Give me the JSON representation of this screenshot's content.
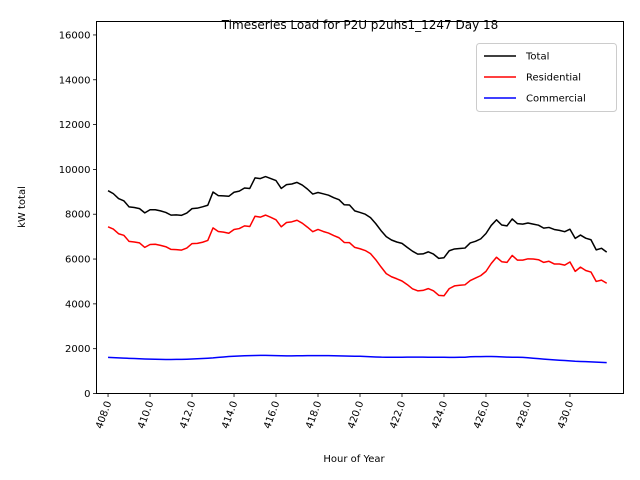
{
  "chart_data": {
    "type": "line",
    "title": "Timeseries Load for P2U p2uhs1_1247  Day 18",
    "xlabel": "Hour of Year",
    "ylabel": "kW total",
    "xlim": [
      407.45,
      432.55
    ],
    "ylim": [
      0,
      16600
    ],
    "grid": false,
    "legend_position": "top-right",
    "xticks": [
      408,
      410,
      412,
      414,
      416,
      418,
      420,
      422,
      424,
      426,
      428,
      430
    ],
    "xtick_labels": [
      "408.0",
      "410.0",
      "412.0",
      "414.0",
      "416.0",
      "418.0",
      "420.0",
      "422.0",
      "424.0",
      "426.0",
      "428.0",
      "430.0"
    ],
    "yticks": [
      0,
      2000,
      4000,
      6000,
      8000,
      10000,
      12000,
      14000,
      16000
    ],
    "ytick_labels": [
      "0",
      "2000",
      "4000",
      "6000",
      "8000",
      "10000",
      "12000",
      "14000",
      "16000"
    ],
    "x": [
      408.0,
      408.25,
      408.5,
      408.75,
      409.0,
      409.25,
      409.5,
      409.75,
      410.0,
      410.25,
      410.5,
      410.75,
      411.0,
      411.25,
      411.5,
      411.75,
      412.0,
      412.25,
      412.5,
      412.75,
      413.0,
      413.25,
      413.5,
      413.75,
      414.0,
      414.25,
      414.5,
      414.75,
      415.0,
      415.25,
      415.5,
      415.75,
      416.0,
      416.25,
      416.5,
      416.75,
      417.0,
      417.25,
      417.5,
      417.75,
      418.0,
      418.25,
      418.5,
      418.75,
      419.0,
      419.25,
      419.5,
      419.75,
      420.0,
      420.25,
      420.5,
      420.75,
      421.0,
      421.25,
      421.5,
      421.75,
      422.0,
      422.25,
      422.5,
      422.75,
      423.0,
      423.25,
      423.5,
      423.75,
      424.0,
      424.25,
      424.5,
      424.75,
      425.0,
      425.25,
      425.5,
      425.75,
      426.0,
      426.25,
      426.5,
      426.75,
      427.0,
      427.25,
      427.5,
      427.75,
      428.0,
      428.25,
      428.5,
      428.75,
      429.0,
      429.25,
      429.5,
      429.75,
      430.0,
      430.25,
      430.5,
      430.75,
      431.0,
      431.25,
      431.5,
      431.75
    ],
    "series": [
      {
        "name": "Total",
        "color": "#000000",
        "values": [
          9050,
          8920,
          8700,
          8600,
          8330,
          8300,
          8250,
          8060,
          8200,
          8200,
          8150,
          8080,
          7960,
          7970,
          7950,
          8050,
          8250,
          8270,
          8330,
          8400,
          8990,
          8830,
          8820,
          8800,
          8980,
          9030,
          9170,
          9150,
          9620,
          9590,
          9680,
          9590,
          9500,
          9150,
          9320,
          9350,
          9420,
          9300,
          9120,
          8900,
          8970,
          8910,
          8850,
          8740,
          8650,
          8420,
          8410,
          8150,
          8080,
          8000,
          7850,
          7580,
          7270,
          7000,
          6850,
          6760,
          6700,
          6520,
          6350,
          6220,
          6230,
          6320,
          6220,
          6030,
          6060,
          6370,
          6450,
          6470,
          6490,
          6720,
          6790,
          6900,
          7140,
          7500,
          7750,
          7520,
          7480,
          7790,
          7580,
          7560,
          7610,
          7560,
          7510,
          7380,
          7410,
          7320,
          7280,
          7220,
          7330,
          6920,
          7070,
          6930,
          6860,
          6410,
          6480,
          6310
        ]
      },
      {
        "name": "Residential",
        "color": "#ff0000",
        "values": [
          7440,
          7340,
          7130,
          7060,
          6790,
          6760,
          6720,
          6520,
          6650,
          6660,
          6610,
          6550,
          6430,
          6420,
          6400,
          6490,
          6690,
          6700,
          6750,
          6830,
          7390,
          7230,
          7200,
          7150,
          7320,
          7360,
          7480,
          7450,
          7910,
          7870,
          7960,
          7860,
          7750,
          7440,
          7630,
          7660,
          7730,
          7600,
          7420,
          7220,
          7320,
          7230,
          7160,
          7050,
          6950,
          6740,
          6730,
          6520,
          6460,
          6380,
          6240,
          5970,
          5650,
          5350,
          5210,
          5120,
          5020,
          4860,
          4670,
          4580,
          4600,
          4680,
          4580,
          4380,
          4360,
          4680,
          4800,
          4830,
          4850,
          5040,
          5150,
          5260,
          5450,
          5800,
          6080,
          5880,
          5850,
          6160,
          5950,
          5950,
          6010,
          6000,
          5970,
          5850,
          5900,
          5780,
          5780,
          5730,
          5870,
          5450,
          5640,
          5490,
          5420,
          5000,
          5060,
          4920
        ]
      },
      {
        "name": "Commercial",
        "color": "#0000ff",
        "values": [
          1610,
          1600,
          1590,
          1580,
          1570,
          1560,
          1550,
          1540,
          1535,
          1530,
          1525,
          1520,
          1520,
          1522,
          1525,
          1530,
          1540,
          1550,
          1560,
          1575,
          1590,
          1610,
          1630,
          1650,
          1665,
          1675,
          1685,
          1690,
          1695,
          1700,
          1700,
          1695,
          1690,
          1685,
          1680,
          1680,
          1682,
          1685,
          1688,
          1690,
          1690,
          1690,
          1688,
          1685,
          1680,
          1675,
          1670,
          1665,
          1660,
          1650,
          1640,
          1630,
          1622,
          1620,
          1620,
          1620,
          1620,
          1622,
          1623,
          1623,
          1622,
          1620,
          1618,
          1617,
          1615,
          1613,
          1612,
          1615,
          1620,
          1640,
          1645,
          1645,
          1650,
          1650,
          1645,
          1635,
          1625,
          1620,
          1615,
          1610,
          1595,
          1575,
          1555,
          1535,
          1515,
          1500,
          1485,
          1470,
          1455,
          1440,
          1430,
          1420,
          1410,
          1400,
          1390,
          1380
        ]
      }
    ]
  }
}
